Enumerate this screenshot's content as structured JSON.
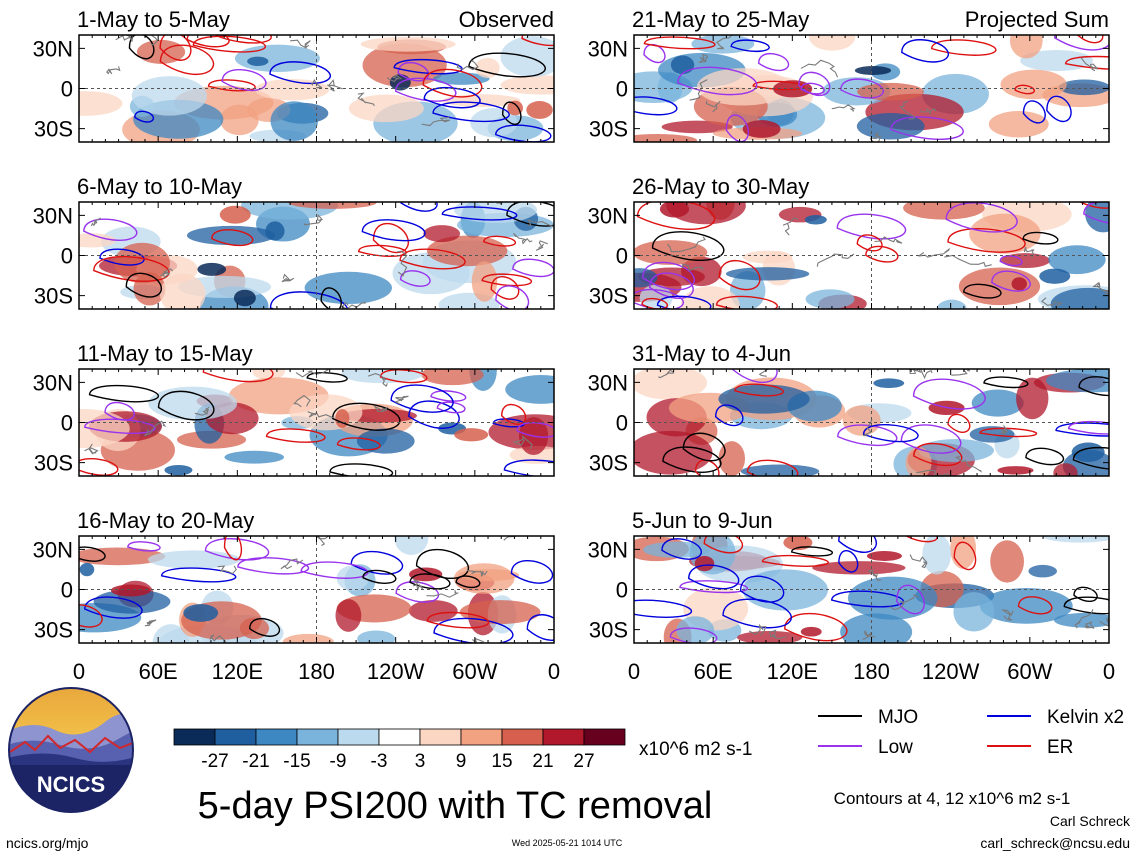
{
  "chart_data": {
    "type": "heatmap",
    "title": "5-day PSI200 with TC removal",
    "panels": [
      {
        "period": "1-May to 5-May",
        "tag": "Observed"
      },
      {
        "period": "6-May to 10-May",
        "tag": ""
      },
      {
        "period": "11-May to 15-May",
        "tag": ""
      },
      {
        "period": "16-May to 20-May",
        "tag": ""
      },
      {
        "period": "21-May to 25-May",
        "tag": "Projected Sum"
      },
      {
        "period": "26-May to 30-May",
        "tag": ""
      },
      {
        "period": "31-May to 4-Jun",
        "tag": ""
      },
      {
        "period": "5-Jun to 9-Jun",
        "tag": ""
      }
    ],
    "y_ticks": [
      "30N",
      "0",
      "30S"
    ],
    "x_ticks": [
      "0",
      "60E",
      "120E",
      "180",
      "120W",
      "60W",
      "0"
    ],
    "colorbar": {
      "tick_labels": [
        "-27",
        "-21",
        "-15",
        "-9",
        "-3",
        "3",
        "9",
        "15",
        "21",
        "27"
      ],
      "colors": [
        "#0a2a58",
        "#1f5fa0",
        "#3d88c3",
        "#7ab4dc",
        "#bcdaee",
        "#ffffff",
        "#fbd6c3",
        "#f2a181",
        "#d6604d",
        "#b2182b",
        "#67001f"
      ],
      "units": "x10^6 m2 s-1"
    },
    "contour_legend": [
      {
        "label": "MJO",
        "color": "#000000"
      },
      {
        "label": "Kelvin x2",
        "color": "#0000dd"
      },
      {
        "label": "Low",
        "color": "#9933ee"
      },
      {
        "label": "ER",
        "color": "#dd1111"
      }
    ],
    "contour_note": "Contours at 4, 12 x10^6 m2 s-1"
  },
  "footer": {
    "left": "ncics.org/mjo",
    "center": "Wed 2025-05-21 1014 UTC",
    "author": "Carl Schreck",
    "email": "carl_schreck@ncsu.edu"
  },
  "logo": {
    "text": "NCICS"
  }
}
